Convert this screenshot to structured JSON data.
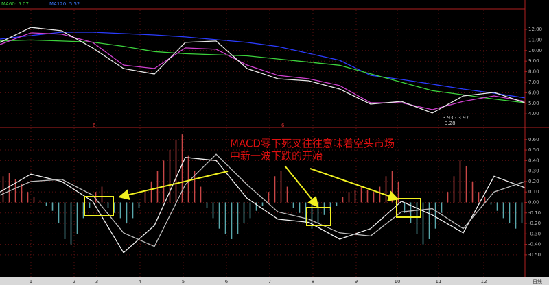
{
  "chart_data": [
    {
      "type": "line",
      "legend": [
        {
          "label": "MA60: 5.07",
          "color": "#3cd23c"
        },
        {
          "label": "MA120: 5.52",
          "color": "#3c78ff"
        }
      ],
      "x": [
        0,
        15,
        30,
        45,
        60,
        75,
        90,
        105,
        120,
        135,
        150,
        165,
        180,
        195,
        210,
        225,
        240,
        255
      ],
      "xlim": [
        0,
        255
      ],
      "ylim": [
        2.84,
        13.82
      ],
      "yticks": [
        {
          "value": 12,
          "label": "12.00"
        },
        {
          "value": 11,
          "label": "11.00"
        },
        {
          "value": 10,
          "label": "10.00"
        },
        {
          "value": 9,
          "label": "9.00"
        },
        {
          "value": 8,
          "label": "8.00"
        },
        {
          "value": 7,
          "label": "7.00"
        },
        {
          "value": 6,
          "label": "6.00"
        },
        {
          "value": 5,
          "label": "5.00"
        },
        {
          "value": 4,
          "label": "4.00"
        }
      ],
      "series": [
        {
          "color": "#2a3cff",
          "values": [
            11.09,
            11.42,
            11.74,
            11.74,
            11.61,
            11.48,
            11.29,
            11.03,
            10.77,
            10.38,
            9.73,
            9.08,
            7.65,
            7.26,
            6.81,
            6.35,
            5.96,
            5.51
          ]
        },
        {
          "color": "#3cd23c",
          "values": [
            10.9,
            11.0,
            10.9,
            10.8,
            10.4,
            9.9,
            9.7,
            9.6,
            9.5,
            9.2,
            8.9,
            8.6,
            7.8,
            7.0,
            6.2,
            5.8,
            5.4,
            5.05
          ]
        },
        {
          "color": "#d040d0",
          "values": [
            10.57,
            11.68,
            11.55,
            10.77,
            8.62,
            8.3,
            10.25,
            10.12,
            8.62,
            7.65,
            7.32,
            6.68,
            5.05,
            5.05,
            4.4,
            5.18,
            5.7,
            5.18
          ]
        },
        {
          "color": "#e8e8e8",
          "values": [
            10.77,
            12.19,
            11.87,
            10.25,
            8.3,
            7.78,
            10.77,
            10.9,
            8.3,
            7.32,
            7.13,
            6.35,
            4.92,
            5.18,
            4.08,
            5.7,
            6.03,
            5.05
          ]
        }
      ],
      "annotations": [
        "3.93 - 3.97",
        "3.28"
      ],
      "period_markers": [
        "6",
        "6"
      ]
    },
    {
      "type": "macd",
      "annotation": [
        "MACD零下死叉往往意味着空头市场",
        "中新一波下跌的开始"
      ],
      "x": [
        0,
        15,
        30,
        45,
        60,
        75,
        90,
        105,
        120,
        135,
        150,
        165,
        180,
        195,
        210,
        225,
        240,
        255
      ],
      "xlim": [
        0,
        255
      ],
      "xticks": [
        {
          "value": 15,
          "label": "1"
        },
        {
          "value": 36,
          "label": "2"
        },
        {
          "value": 47,
          "label": "3"
        },
        {
          "value": 68,
          "label": "4"
        },
        {
          "value": 89,
          "label": "5"
        },
        {
          "value": 110,
          "label": "6"
        },
        {
          "value": 131,
          "label": "7"
        },
        {
          "value": 152,
          "label": "8"
        },
        {
          "value": 173,
          "label": "9"
        },
        {
          "value": 193,
          "label": "10"
        },
        {
          "value": 213,
          "label": "11"
        },
        {
          "value": 235,
          "label": "12"
        }
      ],
      "period_label": "日线",
      "ylim": [
        -0.71,
        0.69
      ],
      "yticks": [
        {
          "value": 0.6,
          "label": "0.60"
        },
        {
          "value": 0.5,
          "label": "0.50"
        },
        {
          "value": 0.4,
          "label": "0.40"
        },
        {
          "value": 0.3,
          "label": "0.30"
        },
        {
          "value": 0.2,
          "label": "0.20"
        },
        {
          "value": 0.1,
          "label": "0.10"
        },
        {
          "value": 0,
          "label": "0.00"
        },
        {
          "value": -0.1,
          "label": "-0.10"
        },
        {
          "value": -0.2,
          "label": "-0.20"
        },
        {
          "value": -0.3,
          "label": "-0.30"
        },
        {
          "value": -0.4,
          "label": "-0.40"
        },
        {
          "value": -0.5,
          "label": "-0.50"
        }
      ],
      "histogram": {
        "up_color": "#c84646",
        "down_color": "#5aa8ac",
        "values": [
          0.25,
          0.28,
          0.22,
          0.18,
          0.1,
          0.05,
          0.02,
          -0.03,
          -0.08,
          -0.2,
          -0.35,
          -0.4,
          -0.3,
          -0.15,
          -0.05,
          0.1,
          0.15,
          -0.05,
          -0.1,
          -0.15,
          -0.2,
          -0.15,
          -0.05,
          0.1,
          0.2,
          0.3,
          0.4,
          0.5,
          0.6,
          0.65,
          0.45,
          0.3,
          0.15,
          -0.05,
          -0.15,
          -0.25,
          -0.3,
          -0.35,
          -0.3,
          -0.2,
          -0.15,
          -0.08,
          -0.03,
          0.1,
          0.25,
          0.3,
          0.15,
          -0.05,
          -0.1,
          -0.2,
          -0.25,
          -0.2,
          -0.12,
          -0.08,
          -0.03,
          0.05,
          0.1,
          0.12,
          0.15,
          0.12,
          0.1,
          0.15,
          0.25,
          0.3,
          0.2,
          -0.1,
          -0.2,
          -0.3,
          -0.4,
          -0.35,
          -0.25,
          -0.1,
          0.1,
          0.25,
          0.4,
          0.35,
          0.2,
          0.1,
          0.05,
          -0.02,
          -0.08,
          -0.15,
          -0.2,
          -0.25,
          -0.2
        ]
      },
      "series": [
        {
          "color": "#f0f0f0",
          "values": [
            0.1,
            0.27,
            0.2,
            0.01,
            -0.48,
            -0.22,
            0.43,
            0.4,
            0.04,
            -0.16,
            -0.19,
            -0.35,
            -0.25,
            0.01,
            -0.12,
            -0.29,
            0.25,
            0.14
          ]
        },
        {
          "color": "#bdbdbd",
          "values": [
            0.07,
            0.2,
            0.22,
            0.07,
            -0.29,
            -0.42,
            0.17,
            0.46,
            0.17,
            -0.09,
            -0.16,
            -0.29,
            -0.32,
            -0.09,
            -0.06,
            -0.25,
            0.1,
            0.2
          ]
        }
      ]
    }
  ]
}
